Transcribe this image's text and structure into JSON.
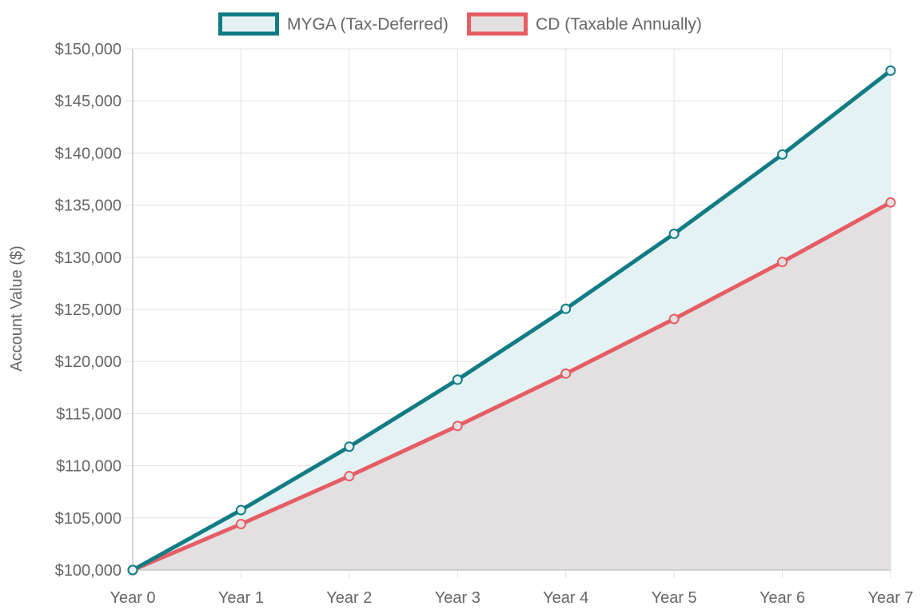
{
  "chart_data": {
    "type": "line",
    "categories": [
      "Year 0",
      "Year 1",
      "Year 2",
      "Year 3",
      "Year 4",
      "Year 5",
      "Year 6",
      "Year 7"
    ],
    "series": [
      {
        "name": "MYGA (Tax-Deferred)",
        "values": [
          100000,
          105750,
          111830,
          118260,
          125060,
          132250,
          139860,
          147900
        ],
        "color": "#127c84",
        "fill": "#e5f2f3"
      },
      {
        "name": "CD (Taxable Annually)",
        "values": [
          100000,
          104410,
          109010,
          113820,
          118840,
          124080,
          129550,
          135260
        ],
        "color": "#e65d65",
        "fill": "#e2e0e1"
      }
    ],
    "ylabel": "Account Value ($)",
    "ylim": [
      100000,
      150000
    ],
    "ytick_step": 5000,
    "ytick_labels": [
      "$100,000",
      "$105,000",
      "$110,000",
      "$115,000",
      "$120,000",
      "$125,000",
      "$130,000",
      "$135,000",
      "$140,000",
      "$145,000",
      "$150,000"
    ],
    "grid": true,
    "legend_position": "top-center"
  }
}
